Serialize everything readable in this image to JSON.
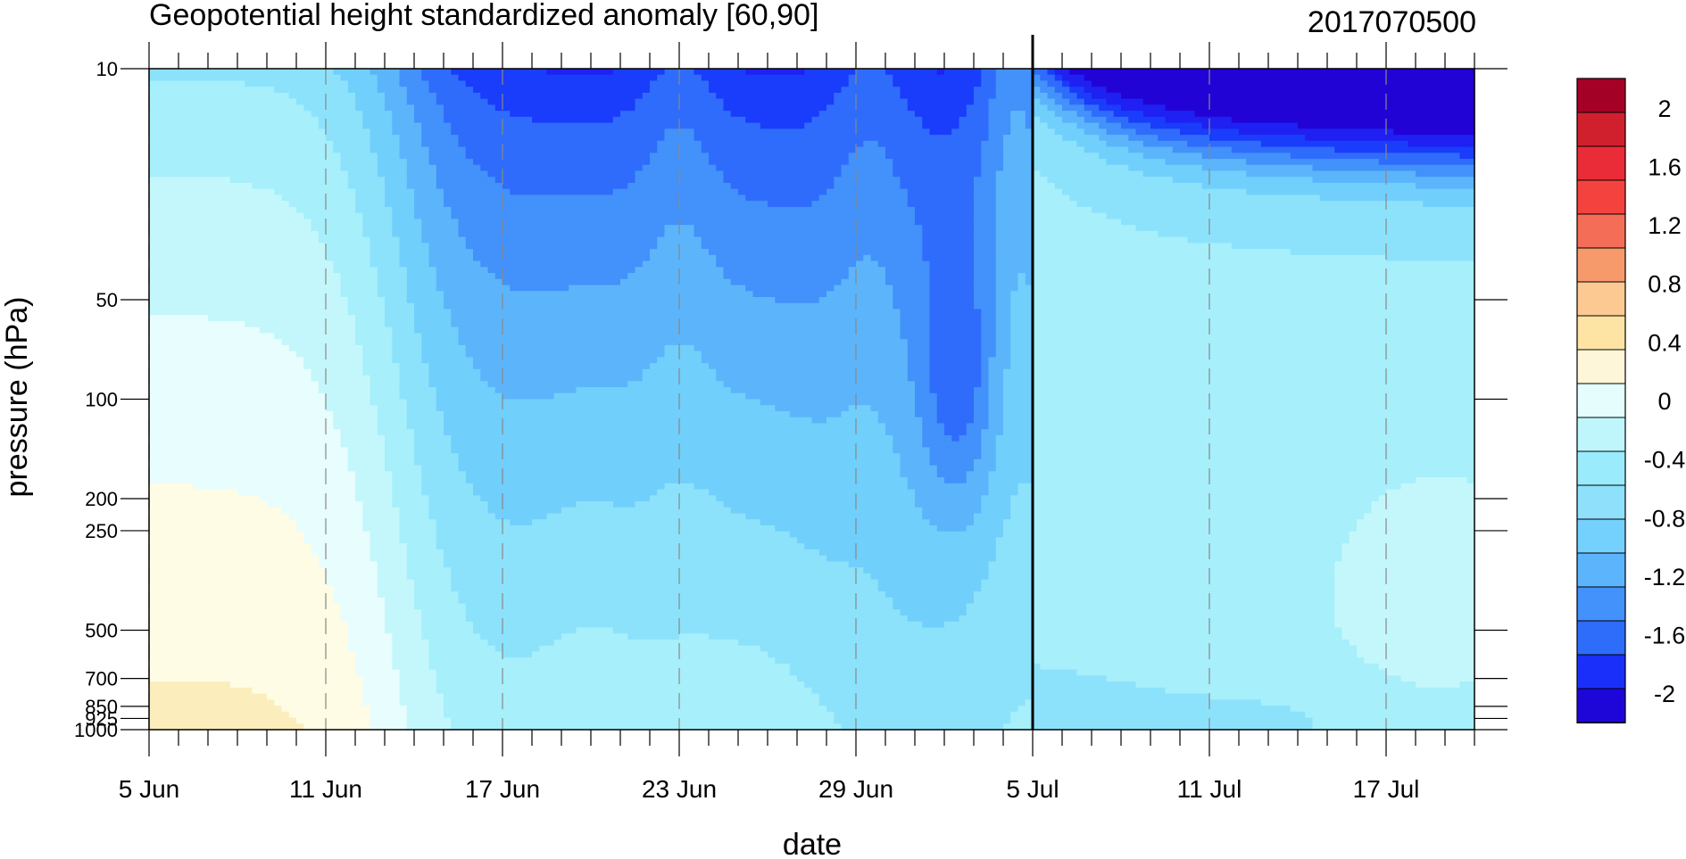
{
  "chart_data": {
    "type": "heatmap",
    "title": "Geopotential height standardized anomaly [60,90]",
    "right_title": "2017070500",
    "xlabel": "date",
    "ylabel": "pressure (hPa)",
    "x_ticks": [
      "5 Jun",
      "11 Jun",
      "17 Jun",
      "23 Jun",
      "29 Jun",
      "5 Jul",
      "11 Jul",
      "17 Jul"
    ],
    "x_tick_days": [
      0,
      6,
      12,
      18,
      24,
      30,
      36,
      42
    ],
    "x_range_days": [
      0,
      45
    ],
    "y_ticks": [
      "10",
      "50",
      "100",
      "200",
      "250",
      "500",
      "700",
      "850",
      "925",
      "1000"
    ],
    "y_tick_values": [
      10,
      50,
      100,
      200,
      250,
      500,
      700,
      850,
      925,
      1000
    ],
    "y_range": [
      1000,
      10
    ],
    "y_scale": "log",
    "vertical_line_day": 30,
    "colorbar": {
      "labels": [
        "2",
        "1.6",
        "1.2",
        "0.8",
        "0.4",
        "0",
        "-0.4",
        "-0.8",
        "-1.2",
        "-1.6",
        "-2"
      ],
      "label_values": [
        2,
        1.6,
        1.2,
        0.8,
        0.4,
        0,
        -0.4,
        -0.8,
        -1.2,
        -1.6,
        -2
      ],
      "levels": [
        2.2,
        2.0,
        1.8,
        1.6,
        1.4,
        1.2,
        1.0,
        0.8,
        0.6,
        0.4,
        0.2,
        0,
        -0.2,
        -0.4,
        -0.6,
        -0.8,
        -1.0,
        -1.2,
        -1.4,
        -1.6,
        -1.8,
        -2.0,
        -2.2
      ],
      "colors": [
        "#a50026",
        "#d0202e",
        "#ea2c38",
        "#f4433f",
        "#f46d57",
        "#f69a6c",
        "#fcc993",
        "#fde3a4",
        "#fef6d8",
        "#e5fdfd",
        "#bff6fb",
        "#9aebfb",
        "#8ee0fb",
        "#74d0fc",
        "#5cb4fc",
        "#4391fa",
        "#2e6cfa",
        "#1a30fa",
        "#1f06d8"
      ]
    },
    "fill_levels": [
      0.4,
      0.2,
      0,
      -0.2,
      -0.4,
      -0.6,
      -0.8,
      -1.0,
      -1.2,
      -1.4,
      -1.6,
      -1.8,
      -2.0
    ],
    "fill_colors": [
      "#fcedbd",
      "#fefce4",
      "#e8fdfd",
      "#c4f7fb",
      "#a6effb",
      "#8de2fb",
      "#71cffb",
      "#5cb5fb",
      "#4391fa",
      "#2f6cfb",
      "#1a3cfb",
      "#1f20f2",
      "#2203d6"
    ]
  }
}
